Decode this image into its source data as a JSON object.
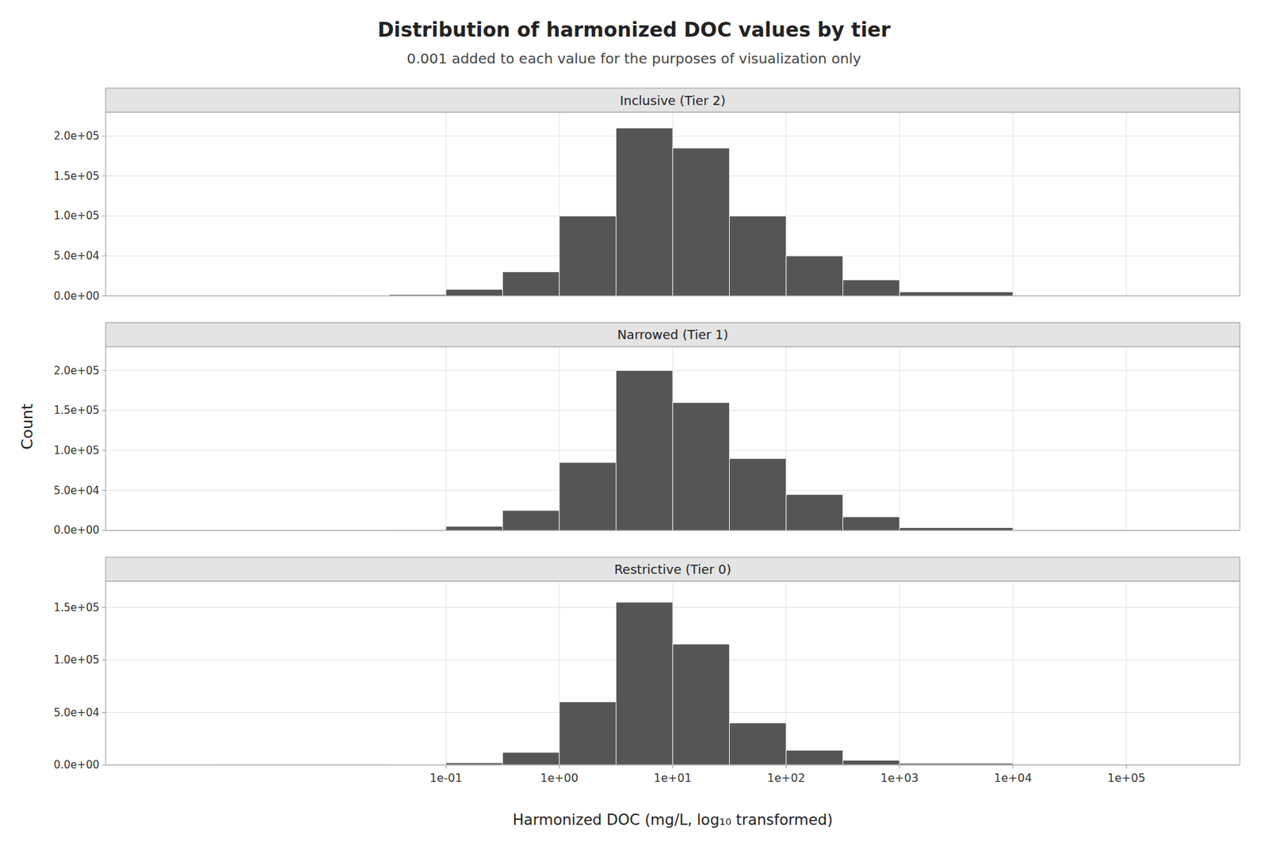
{
  "title": "Distribution of harmonized DOC values by tier",
  "subtitle": "0.001 added to each value for the purposes of visualization only",
  "ylabel": "Count",
  "xlabel": "Harmonized DOC (mg/L, log₁₀ transformed)",
  "chart_data": [
    {
      "type": "histogram",
      "title": "Inclusive (Tier 2)",
      "color": "#555555",
      "log": "x",
      "grid": true,
      "tick_labels": "y",
      "bins": [
        0.0001,
        0.001,
        0.01,
        0.03162277660168379,
        0.1,
        0.31622776601683794,
        1,
        3.1622776601683795,
        10,
        31.622776601683793,
        100,
        316.22776601683796,
        1000,
        10000,
        100000,
        1000000
      ],
      "values": [
        200,
        300,
        500,
        1500,
        8000,
        30000,
        100000,
        210000,
        185000,
        100000,
        50000,
        20000,
        5000,
        500,
        100
      ],
      "xlim": [
        0.0001,
        1000000
      ],
      "xticks": [
        {
          "value": 0.1,
          "label": "1e-01"
        },
        {
          "value": 1,
          "label": "1e+00"
        },
        {
          "value": 10,
          "label": "1e+01"
        },
        {
          "value": 100,
          "label": "1e+02"
        },
        {
          "value": 1000,
          "label": "1e+03"
        },
        {
          "value": 10000,
          "label": "1e+04"
        },
        {
          "value": 100000,
          "label": "1e+05"
        }
      ],
      "ylim": [
        0,
        230000
      ],
      "yticks": [
        {
          "value": 0,
          "label": "0.0e+00"
        },
        {
          "value": 50000,
          "label": "5.0e+04"
        },
        {
          "value": 100000,
          "label": "1.0e+05"
        },
        {
          "value": 150000,
          "label": "1.5e+05"
        },
        {
          "value": 200000,
          "label": "2.0e+05"
        }
      ]
    },
    {
      "type": "histogram",
      "title": "Narrowed (Tier 1)",
      "color": "#555555",
      "log": "x",
      "grid": true,
      "tick_labels": "y",
      "bins": [
        0.0001,
        0.001,
        0.01,
        0.03162277660168379,
        0.1,
        0.31622776601683794,
        1,
        3.1622776601683795,
        10,
        31.622776601683793,
        100,
        316.22776601683796,
        1000,
        10000,
        100000,
        1000000
      ],
      "values": [
        100,
        200,
        300,
        800,
        5000,
        25000,
        85000,
        200000,
        160000,
        90000,
        45000,
        17000,
        3500,
        350,
        70
      ],
      "xlim": [
        0.0001,
        1000000
      ],
      "xticks": [
        {
          "value": 0.1,
          "label": "1e-01"
        },
        {
          "value": 1,
          "label": "1e+00"
        },
        {
          "value": 10,
          "label": "1e+01"
        },
        {
          "value": 100,
          "label": "1e+02"
        },
        {
          "value": 1000,
          "label": "1e+03"
        },
        {
          "value": 10000,
          "label": "1e+04"
        },
        {
          "value": 100000,
          "label": "1e+05"
        }
      ],
      "ylim": [
        0,
        230000
      ],
      "yticks": [
        {
          "value": 0,
          "label": "0.0e+00"
        },
        {
          "value": 50000,
          "label": "5.0e+04"
        },
        {
          "value": 100000,
          "label": "1.0e+05"
        },
        {
          "value": 150000,
          "label": "1.5e+05"
        },
        {
          "value": 200000,
          "label": "2.0e+05"
        }
      ]
    },
    {
      "type": "histogram",
      "title": "Restrictive (Tier 0)",
      "color": "#555555",
      "log": "x",
      "grid": true,
      "bins": [
        0.0001,
        0.001,
        0.01,
        0.03162277660168379,
        0.1,
        0.31622776601683794,
        1,
        3.1622776601683795,
        10,
        31.622776601683793,
        100,
        316.22776601683796,
        1000,
        10000,
        100000,
        1000000
      ],
      "values": [
        50,
        100,
        150,
        400,
        2000,
        12000,
        60000,
        155000,
        115000,
        40000,
        14000,
        4500,
        1500,
        200,
        50
      ],
      "xlim": [
        0.0001,
        1000000
      ],
      "xticks": [
        {
          "value": 0.1,
          "label": "1e-01"
        },
        {
          "value": 1,
          "label": "1e+00"
        },
        {
          "value": 10,
          "label": "1e+01"
        },
        {
          "value": 100,
          "label": "1e+02"
        },
        {
          "value": 1000,
          "label": "1e+03"
        },
        {
          "value": 10000,
          "label": "1e+04"
        },
        {
          "value": 100000,
          "label": "1e+05"
        }
      ],
      "ylim": [
        0,
        175000
      ],
      "yticks": [
        {
          "value": 0,
          "label": "0.0e+00"
        },
        {
          "value": 50000,
          "label": "5.0e+04"
        },
        {
          "value": 100000,
          "label": "1.0e+05"
        },
        {
          "value": 150000,
          "label": "1.5e+05"
        }
      ]
    }
  ]
}
